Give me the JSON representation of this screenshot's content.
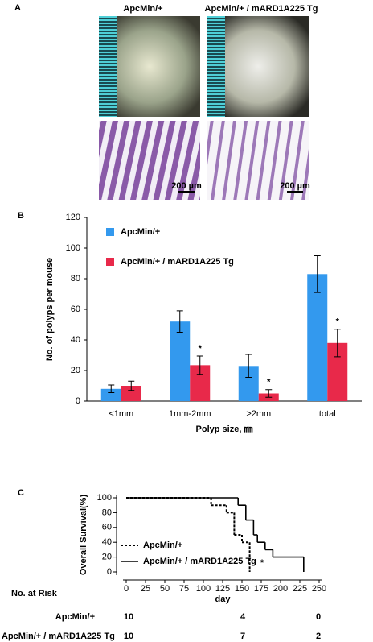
{
  "panel_labels": [
    "A",
    "B",
    "C"
  ],
  "images": {
    "column_titles": [
      "ApcMin/+",
      "ApcMin/+ / mARD1A225 Tg"
    ],
    "scale_bars": [
      "200 µm",
      "200 µm"
    ]
  },
  "chart_data": [
    {
      "type": "bar",
      "categories": [
        "<1mm",
        "1mm-2mm",
        ">2mm",
        "total"
      ],
      "series": [
        {
          "name": "ApcMin/+",
          "color": "#3399ee",
          "values": [
            8,
            52,
            23,
            83
          ],
          "errors": [
            2.5,
            7,
            7.5,
            12
          ]
        },
        {
          "name": "ApcMin/+ / mARD1A225 Tg",
          "color": "#e8294a",
          "values": [
            10,
            23.5,
            5,
            38
          ],
          "errors": [
            3,
            6,
            2.5,
            9
          ]
        }
      ],
      "ylim": [
        0,
        120
      ],
      "yticks": [
        0,
        20,
        40,
        60,
        80,
        100,
        120
      ],
      "y_label": "No. of polyps per mouse",
      "x_label": "Polyp size, ㎜",
      "annotations": [
        "*",
        "*",
        "*"
      ],
      "legend": "top-left"
    },
    {
      "type": "step",
      "series": [
        {
          "name": "ApcMin/+",
          "dash": true,
          "x": [
            0,
            110,
            130,
            140,
            150,
            160
          ],
          "values": [
            100,
            90,
            80,
            50,
            40,
            0
          ]
        },
        {
          "name": "ApcMin/+ / mARD1A225 Tg",
          "dash": false,
          "x": [
            0,
            145,
            155,
            165,
            170,
            180,
            190,
            230
          ],
          "values": [
            100,
            90,
            70,
            50,
            40,
            30,
            20,
            0
          ]
        }
      ],
      "xlim": [
        0,
        250
      ],
      "xticks": [
        0,
        25,
        50,
        75,
        100,
        125,
        150,
        175,
        200,
        225,
        250
      ],
      "ylim": [
        0,
        100
      ],
      "yticks": [
        0,
        20,
        40,
        60,
        80,
        100
      ],
      "y_label": "Overall Survival(%)",
      "x_label": "day",
      "annotation": "*",
      "legend": "bottom-left"
    }
  ],
  "risk_table": {
    "title": "No. at Risk",
    "rows": [
      {
        "label": "ApcMin/+",
        "values": [
          10,
          4,
          0
        ]
      },
      {
        "label": "ApcMin/+ / mARD1A225 Tg",
        "values": [
          10,
          7,
          2
        ]
      }
    ]
  }
}
